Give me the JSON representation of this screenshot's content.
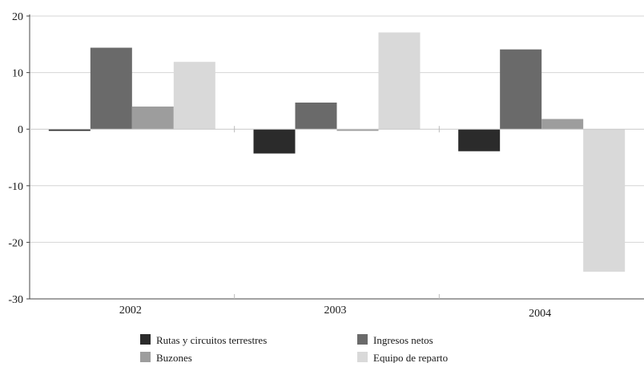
{
  "chart_data": {
    "type": "bar",
    "title": "",
    "xlabel": "",
    "ylabel": "",
    "categories": [
      "2002",
      "2003",
      "2004"
    ],
    "series": [
      {
        "name": "Rutas y circuitos terrestres",
        "color": "#2b2b2b",
        "values": [
          -0.3,
          -4.3,
          -3.9
        ]
      },
      {
        "name": "Ingresos netos",
        "color": "#6a6a6a",
        "values": [
          14.4,
          4.7,
          14.1
        ]
      },
      {
        "name": "Buzones",
        "color": "#9d9d9d",
        "values": [
          4.0,
          -0.3,
          1.8
        ]
      },
      {
        "name": "Equipo de reparto",
        "color": "#d9d9d9",
        "values": [
          11.9,
          17.1,
          -25.2
        ]
      }
    ],
    "yticks": [
      "20",
      "10",
      "0",
      "-10",
      "-20",
      "-30"
    ],
    "ylim": [
      -30,
      20
    ],
    "grid": true,
    "legend_position": "bottom"
  }
}
